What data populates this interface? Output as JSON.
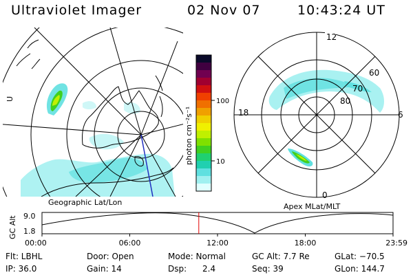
{
  "header": {
    "title": "Ultraviolet Imager",
    "date": "02 Nov 07",
    "time": "10:43:24 UT"
  },
  "geo_panel": {
    "caption": "Geographic Lat/Lon",
    "side_label": "U"
  },
  "polar_panel": {
    "caption": "Apex MLat/MLT",
    "mlt_labels": [
      "12",
      "6",
      "0",
      "18"
    ],
    "lat_labels": [
      "60",
      "70",
      "80"
    ]
  },
  "colorbar": {
    "unit_label": "photon cm⁻²s⁻¹",
    "ticks": [
      "100",
      "10"
    ],
    "colors": [
      "#0a0a2a",
      "#400040",
      "#700050",
      "#a00030",
      "#d01010",
      "#f04000",
      "#f07000",
      "#f0a000",
      "#f0d000",
      "#f0f000",
      "#c0f000",
      "#80e000",
      "#40d020",
      "#20d070",
      "#20d0b0",
      "#60e0e0",
      "#a0f0f0",
      "#e0ffff"
    ]
  },
  "orbit_plot": {
    "ylabel": "GC Alt",
    "ytick_top": "9.0",
    "ytick_bottom": "1.8",
    "xticks": [
      "00:00",
      "06:00",
      "12:00",
      "18:00",
      "23:59"
    ],
    "marker_time_hours": 10.72,
    "line_color": "#000000",
    "marker_color": "#e00000"
  },
  "info": {
    "flt": "Flt: LBHL",
    "ip": "IP: 36.0",
    "door": "Door: Open",
    "gain": "Gain: 14",
    "mode": "Mode: Normal",
    "dsp": "Dsp:      2.4",
    "gc_alt": "GC Alt: 7.7 Re",
    "seq": "Seq: 39",
    "glat": "GLat: −70.5",
    "glon": "GLon: 144.7"
  }
}
